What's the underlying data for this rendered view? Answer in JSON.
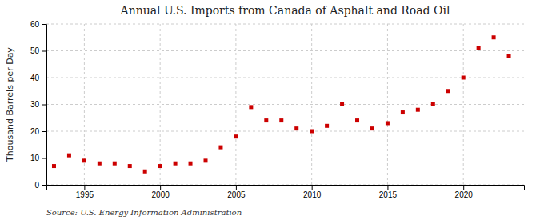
{
  "chart_data": {
    "type": "scatter",
    "title": "Annual U.S. Imports from Canada of Asphalt and Road Oil",
    "ylabel": "Thousand Barrels per Day",
    "annotation": "Source: U.S. Energy Information Administration",
    "x": [
      1993,
      1994,
      1995,
      1996,
      1997,
      1998,
      1999,
      2000,
      2001,
      2002,
      2003,
      2004,
      2005,
      2006,
      2007,
      2008,
      2009,
      2010,
      2011,
      2012,
      2013,
      2014,
      2015,
      2016,
      2017,
      2018,
      2019,
      2020,
      2021,
      2022,
      2023
    ],
    "values": [
      7,
      11,
      9,
      8,
      8,
      7,
      5,
      7,
      8,
      8,
      9,
      14,
      18,
      29,
      24,
      24,
      21,
      20,
      22,
      30,
      24,
      21,
      23,
      27,
      28,
      30,
      35,
      40,
      51,
      55,
      48
    ],
    "color": "#cc0000",
    "marker": "square",
    "xlim": [
      1992.5,
      2024
    ],
    "xticks": [
      1995,
      2000,
      2005,
      2010,
      2015,
      2020
    ],
    "ylim": [
      0,
      60
    ],
    "yticks": [
      0,
      10,
      20,
      30,
      40,
      50,
      60
    ],
    "grid": true
  }
}
